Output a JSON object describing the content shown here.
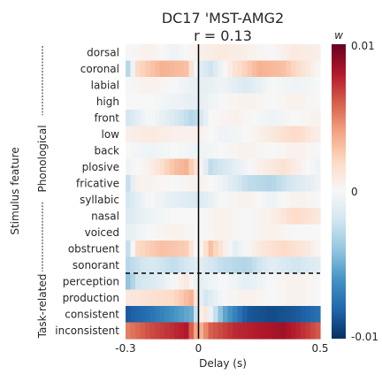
{
  "chart_data": {
    "type": "heatmap",
    "title": "DC17 'MST-AMG2",
    "subtitle": "r = 0.13",
    "xlabel": "Delay (s)",
    "ylabel": "Stimulus feature",
    "x_ticks": [
      "-0.3",
      "0",
      "0.5"
    ],
    "xlim": [
      -0.3,
      0.5
    ],
    "rows": [
      "dorsal",
      "coronal",
      "labial",
      "high",
      "front",
      "low",
      "back",
      "plosive",
      "fricative",
      "syllabic",
      "nasal",
      "voiced",
      "obstruent",
      "sonorant",
      "perception",
      "production",
      "consistent",
      "inconsistent"
    ],
    "groups": [
      {
        "label": "Phonological",
        "rows": [
          0,
          13
        ]
      },
      {
        "label": "Task-related",
        "rows": [
          14,
          17
        ]
      }
    ],
    "colorbar": {
      "label": "w",
      "colormap": "RdBu_r",
      "range": [
        -0.01,
        0.01
      ],
      "ticks": [
        "0.01",
        "0",
        "-0.01"
      ]
    },
    "zero_line_x": 0,
    "separator_between_rows": [
      13,
      14
    ],
    "row_profiles": [
      [
        [
          -0.3,
          0.0
        ],
        [
          -0.2,
          0.05
        ],
        [
          -0.1,
          -0.05
        ],
        [
          0.0,
          0.05
        ],
        [
          0.1,
          0.1
        ],
        [
          0.2,
          0.05
        ],
        [
          0.3,
          0.0
        ],
        [
          0.4,
          0.1
        ],
        [
          0.5,
          0.05
        ]
      ],
      [
        [
          -0.3,
          -0.4
        ],
        [
          -0.25,
          0.2
        ],
        [
          -0.15,
          0.35
        ],
        [
          -0.05,
          0.3
        ],
        [
          0.0,
          -0.1
        ],
        [
          0.05,
          -0.2
        ],
        [
          0.15,
          0.15
        ],
        [
          0.25,
          0.35
        ],
        [
          0.35,
          0.3
        ],
        [
          0.45,
          0.1
        ],
        [
          0.5,
          0.0
        ]
      ],
      [
        [
          -0.3,
          0.0
        ],
        [
          -0.2,
          0.05
        ],
        [
          -0.1,
          0.0
        ],
        [
          0.0,
          -0.1
        ],
        [
          0.1,
          -0.05
        ],
        [
          0.2,
          -0.15
        ],
        [
          0.3,
          0.0
        ],
        [
          0.4,
          -0.05
        ],
        [
          0.5,
          0.0
        ]
      ],
      [
        [
          -0.3,
          0.0
        ],
        [
          -0.2,
          0.0
        ],
        [
          -0.1,
          -0.05
        ],
        [
          0.0,
          -0.1
        ],
        [
          0.1,
          0.0
        ],
        [
          0.2,
          0.05
        ],
        [
          0.3,
          0.0
        ],
        [
          0.4,
          0.05
        ],
        [
          0.5,
          0.0
        ]
      ],
      [
        [
          -0.3,
          -0.2
        ],
        [
          -0.2,
          0.0
        ],
        [
          -0.1,
          -0.15
        ],
        [
          -0.02,
          -0.3
        ],
        [
          0.05,
          0.0
        ],
        [
          0.15,
          0.05
        ],
        [
          0.3,
          -0.05
        ],
        [
          0.4,
          0.0
        ],
        [
          0.5,
          0.05
        ]
      ],
      [
        [
          -0.3,
          0.05
        ],
        [
          -0.2,
          0.1
        ],
        [
          -0.1,
          0.05
        ],
        [
          0.0,
          0.05
        ],
        [
          0.1,
          -0.05
        ],
        [
          0.2,
          0.0
        ],
        [
          0.3,
          0.1
        ],
        [
          0.4,
          0.2
        ],
        [
          0.5,
          0.05
        ]
      ],
      [
        [
          -0.3,
          0.0
        ],
        [
          -0.2,
          -0.05
        ],
        [
          -0.1,
          0.0
        ],
        [
          0.0,
          -0.05
        ],
        [
          0.1,
          0.0
        ],
        [
          0.2,
          0.05
        ],
        [
          0.3,
          0.0
        ],
        [
          0.4,
          0.05
        ],
        [
          0.5,
          0.0
        ]
      ],
      [
        [
          -0.3,
          -0.05
        ],
        [
          -0.2,
          0.05
        ],
        [
          -0.1,
          0.3
        ],
        [
          -0.05,
          0.35
        ],
        [
          0.0,
          0.1
        ],
        [
          0.05,
          -0.25
        ],
        [
          0.15,
          -0.1
        ],
        [
          0.25,
          0.05
        ],
        [
          0.35,
          0.15
        ],
        [
          0.45,
          0.0
        ],
        [
          0.5,
          -0.05
        ]
      ],
      [
        [
          -0.3,
          -0.3
        ],
        [
          -0.25,
          0.05
        ],
        [
          -0.1,
          0.0
        ],
        [
          0.0,
          0.05
        ],
        [
          0.1,
          -0.05
        ],
        [
          0.2,
          -0.25
        ],
        [
          0.3,
          -0.3
        ],
        [
          0.4,
          -0.15
        ],
        [
          0.5,
          -0.05
        ]
      ],
      [
        [
          -0.3,
          -0.2
        ],
        [
          -0.2,
          0.0
        ],
        [
          -0.1,
          -0.1
        ],
        [
          0.0,
          -0.15
        ],
        [
          0.1,
          0.0
        ],
        [
          0.2,
          0.05
        ],
        [
          0.3,
          -0.05
        ],
        [
          0.4,
          0.05
        ],
        [
          0.5,
          0.0
        ]
      ],
      [
        [
          -0.3,
          -0.15
        ],
        [
          -0.2,
          -0.05
        ],
        [
          -0.1,
          0.0
        ],
        [
          0.0,
          0.0
        ],
        [
          0.1,
          0.05
        ],
        [
          0.2,
          0.0
        ],
        [
          0.3,
          0.05
        ],
        [
          0.4,
          0.2
        ],
        [
          0.5,
          0.1
        ]
      ],
      [
        [
          -0.3,
          -0.1
        ],
        [
          -0.2,
          0.0
        ],
        [
          -0.1,
          0.05
        ],
        [
          0.0,
          0.0
        ],
        [
          0.1,
          0.05
        ],
        [
          0.2,
          0.0
        ],
        [
          0.3,
          0.05
        ],
        [
          0.4,
          0.0
        ],
        [
          0.5,
          0.0
        ]
      ],
      [
        [
          -0.3,
          -0.35
        ],
        [
          -0.25,
          0.2
        ],
        [
          -0.15,
          0.3
        ],
        [
          -0.05,
          0.25
        ],
        [
          0.0,
          -0.05
        ],
        [
          0.05,
          0.3
        ],
        [
          0.15,
          -0.1
        ],
        [
          0.25,
          0.1
        ],
        [
          0.35,
          0.2
        ],
        [
          0.45,
          0.1
        ],
        [
          0.5,
          0.0
        ]
      ],
      [
        [
          -0.3,
          -0.3
        ],
        [
          -0.2,
          -0.15
        ],
        [
          -0.1,
          -0.25
        ],
        [
          0.0,
          -0.1
        ],
        [
          0.1,
          -0.25
        ],
        [
          0.2,
          -0.3
        ],
        [
          0.3,
          -0.1
        ],
        [
          0.4,
          -0.2
        ],
        [
          0.5,
          -0.1
        ]
      ],
      [
        [
          -0.3,
          -0.45
        ],
        [
          -0.25,
          -0.2
        ],
        [
          -0.15,
          -0.1
        ],
        [
          -0.05,
          0.1
        ],
        [
          0.0,
          -0.1
        ],
        [
          0.1,
          0.0
        ],
        [
          0.2,
          -0.1
        ],
        [
          0.3,
          0.0
        ],
        [
          0.4,
          0.05
        ],
        [
          0.5,
          0.0
        ]
      ],
      [
        [
          -0.3,
          0.1
        ],
        [
          -0.2,
          0.15
        ],
        [
          -0.1,
          0.2
        ],
        [
          -0.03,
          0.35
        ],
        [
          0.02,
          -0.2
        ],
        [
          0.1,
          0.0
        ],
        [
          0.2,
          0.05
        ],
        [
          0.3,
          0.0
        ],
        [
          0.4,
          0.05
        ],
        [
          0.5,
          0.0
        ]
      ],
      [
        [
          -0.3,
          -0.85
        ],
        [
          -0.2,
          -0.75
        ],
        [
          -0.1,
          -0.6
        ],
        [
          -0.03,
          -0.5
        ],
        [
          0.02,
          0.2
        ],
        [
          0.1,
          -0.5
        ],
        [
          0.2,
          -0.85
        ],
        [
          0.3,
          -0.9
        ],
        [
          0.4,
          -0.85
        ],
        [
          0.5,
          -0.75
        ]
      ],
      [
        [
          -0.3,
          0.5
        ],
        [
          -0.2,
          0.65
        ],
        [
          -0.1,
          0.75
        ],
        [
          -0.05,
          0.8
        ],
        [
          0.0,
          0.3
        ],
        [
          0.05,
          0.6
        ],
        [
          0.15,
          0.75
        ],
        [
          0.25,
          0.8
        ],
        [
          0.35,
          0.85
        ],
        [
          0.45,
          0.7
        ],
        [
          0.5,
          0.6
        ]
      ]
    ]
  }
}
